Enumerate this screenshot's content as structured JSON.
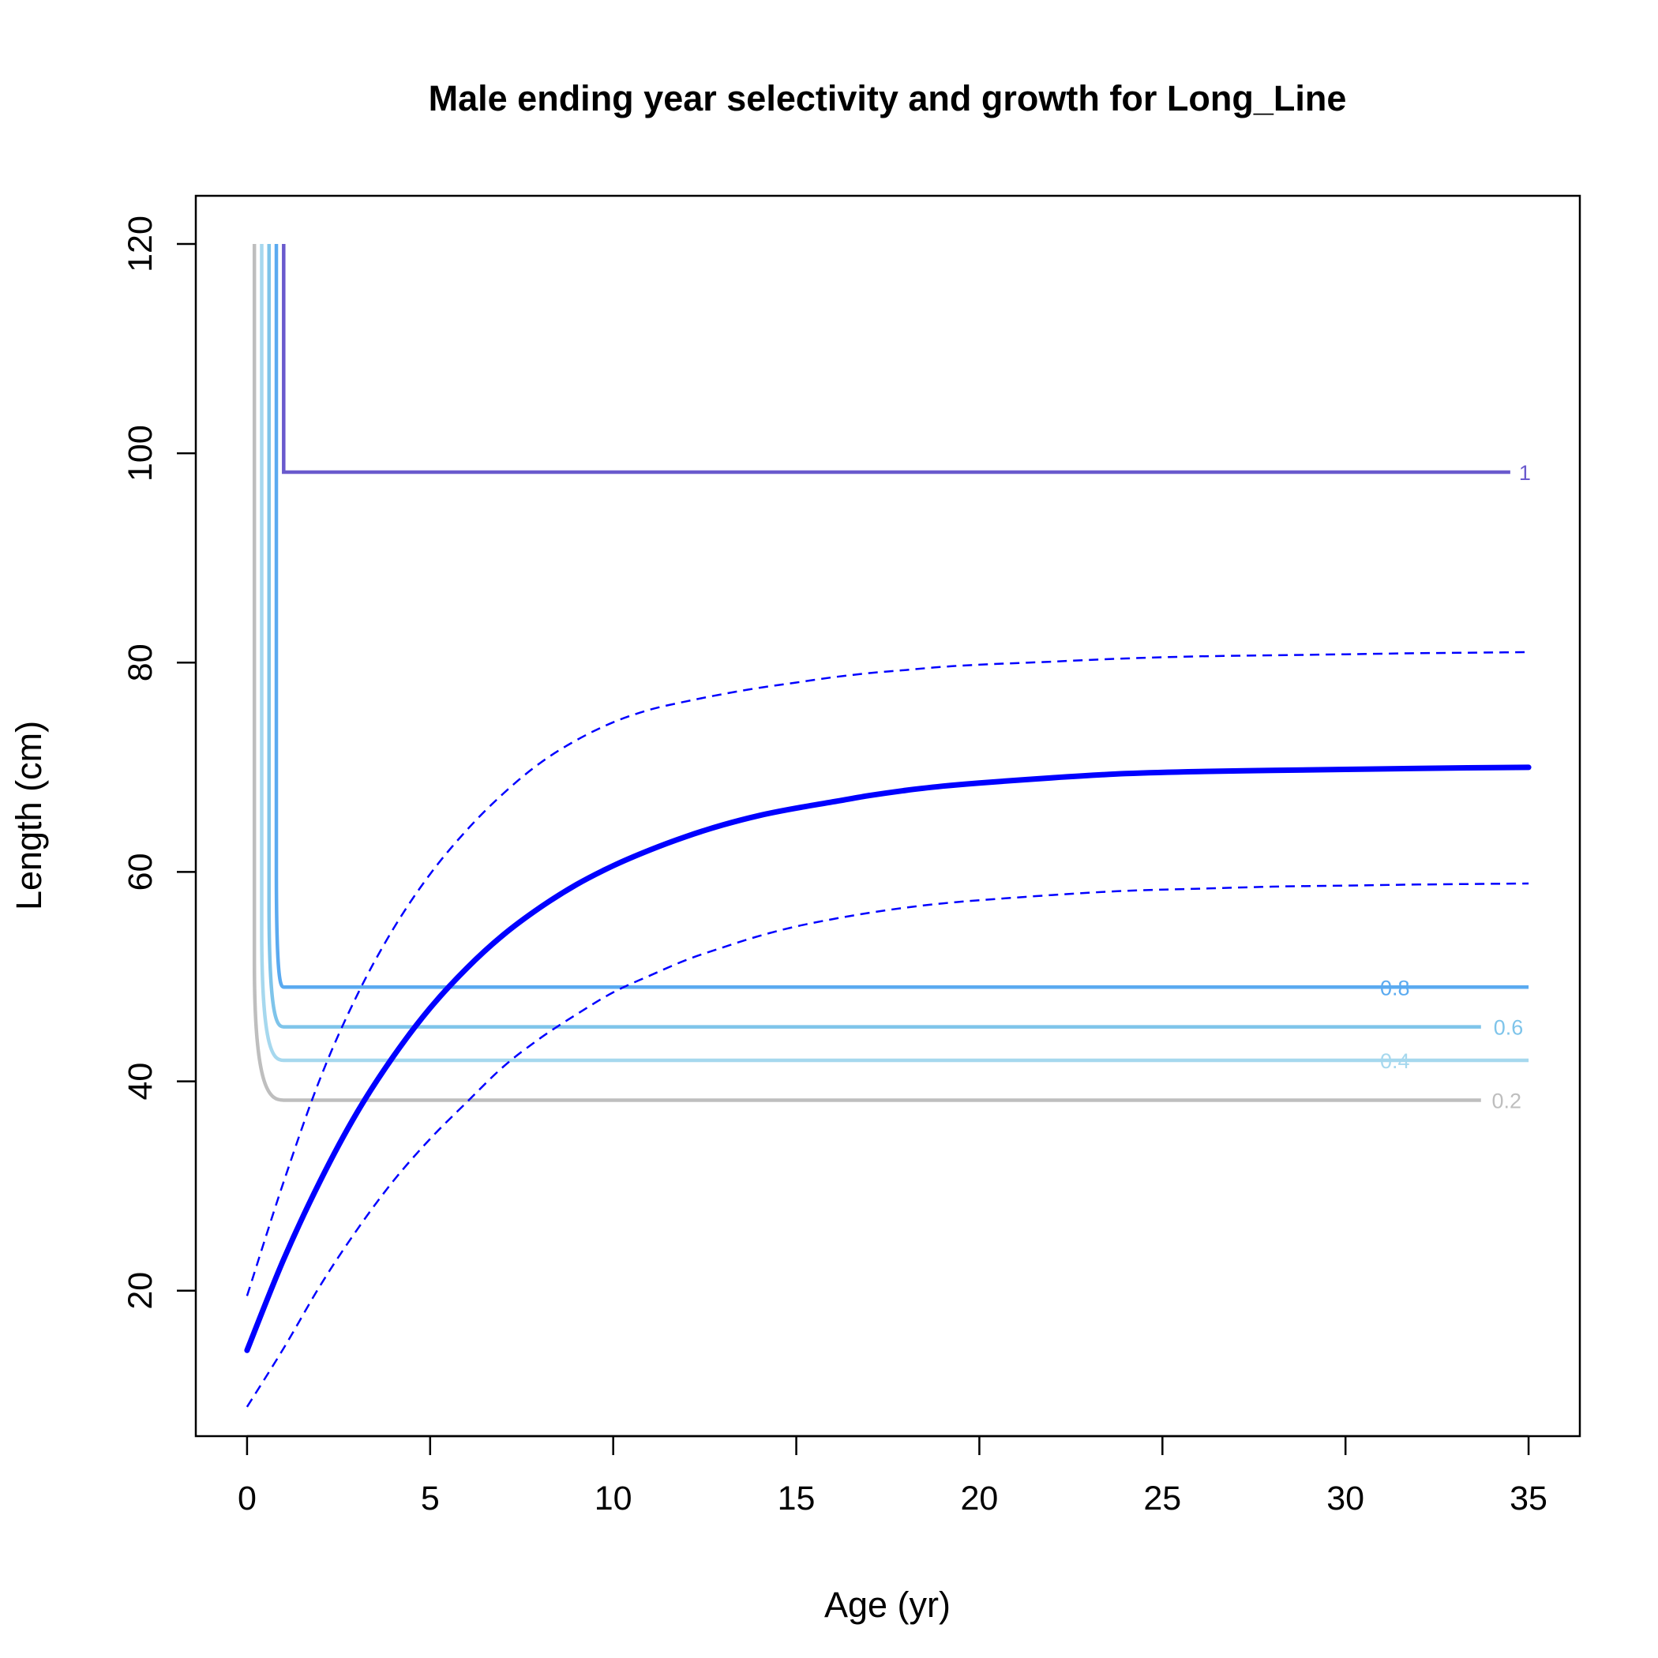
{
  "chart_data": {
    "type": "line",
    "title": "Male ending year selectivity and growth for Long_Line",
    "xlabel": "Age (yr)",
    "ylabel": "Length (cm)",
    "xlim": [
      -1.4,
      36.4
    ],
    "ylim": [
      6.1,
      124.6
    ],
    "xticks": [
      0,
      5,
      10,
      15,
      20,
      25,
      30,
      35
    ],
    "yticks": [
      20,
      40,
      60,
      80,
      100,
      120
    ],
    "grid": false,
    "legend": "none",
    "growth": {
      "color": "#0000ff",
      "mean": {
        "x": [
          0,
          1,
          2,
          3,
          4,
          5,
          6,
          7,
          8,
          9,
          10,
          11,
          12,
          13,
          14,
          15,
          16,
          17,
          18,
          19,
          20,
          22,
          24,
          26,
          28,
          30,
          32,
          35
        ],
        "y": [
          14.3,
          23.0,
          30.5,
          37.0,
          42.4,
          47.0,
          50.8,
          54.0,
          56.6,
          58.8,
          60.6,
          62.1,
          63.4,
          64.5,
          65.4,
          66.1,
          66.7,
          67.3,
          67.8,
          68.2,
          68.5,
          69.0,
          69.4,
          69.6,
          69.7,
          69.8,
          69.9,
          70.0
        ]
      },
      "upper": {
        "x": [
          0,
          1,
          2,
          3,
          4,
          5,
          6,
          7,
          8,
          9,
          10,
          11,
          12,
          13,
          14,
          15,
          16,
          17,
          18,
          19,
          20,
          22,
          24,
          26,
          28,
          30,
          32,
          35
        ],
        "y": [
          19.5,
          30.4,
          40.3,
          48.2,
          54.6,
          59.8,
          64.0,
          67.5,
          70.4,
          72.6,
          74.3,
          75.5,
          76.3,
          77.0,
          77.6,
          78.1,
          78.6,
          79.0,
          79.3,
          79.6,
          79.8,
          80.1,
          80.4,
          80.6,
          80.7,
          80.8,
          80.9,
          81.0
        ]
      },
      "lower": {
        "x": [
          0,
          1,
          2,
          3,
          4,
          5,
          6,
          7,
          8,
          9,
          10,
          11,
          12,
          13,
          14,
          15,
          16,
          17,
          18,
          19,
          20,
          22,
          24,
          26,
          28,
          30,
          32,
          35
        ],
        "y": [
          8.9,
          14.5,
          20.5,
          25.8,
          30.5,
          34.5,
          38.0,
          41.4,
          44.1,
          46.4,
          48.5,
          50.1,
          51.6,
          52.8,
          53.9,
          54.8,
          55.5,
          56.1,
          56.6,
          57.0,
          57.3,
          57.8,
          58.2,
          58.4,
          58.6,
          58.7,
          58.8,
          58.9
        ]
      }
    },
    "selectivity_contours": [
      {
        "level": "0.2",
        "color": "#bebebe",
        "x_vertical": 0.2,
        "knee_x": 1.0,
        "y_flat": 38.2,
        "x_end": 33.7,
        "label_x": 34.4
      },
      {
        "level": "0.4",
        "color": "#a6d8ee",
        "x_vertical": 0.4,
        "knee_x": 1.0,
        "y_flat": 42.0,
        "x_end": 35.0,
        "label_x": 31.35
      },
      {
        "level": "0.6",
        "color": "#7ec4ea",
        "x_vertical": 0.6,
        "knee_x": 1.0,
        "y_flat": 45.2,
        "x_end": 33.7,
        "label_x": 34.45
      },
      {
        "level": "0.8",
        "color": "#5aaaf0",
        "x_vertical": 0.8,
        "knee_x": 1.0,
        "y_flat": 49.0,
        "x_end": 35.0,
        "label_x": 31.35
      },
      {
        "level": "1",
        "color": "#6a5acd",
        "x_vertical": 1.0,
        "knee_x": 1.0,
        "y_flat": 98.2,
        "x_end": 34.5,
        "label_x": 34.9
      }
    ],
    "contour_y_top": 120
  }
}
